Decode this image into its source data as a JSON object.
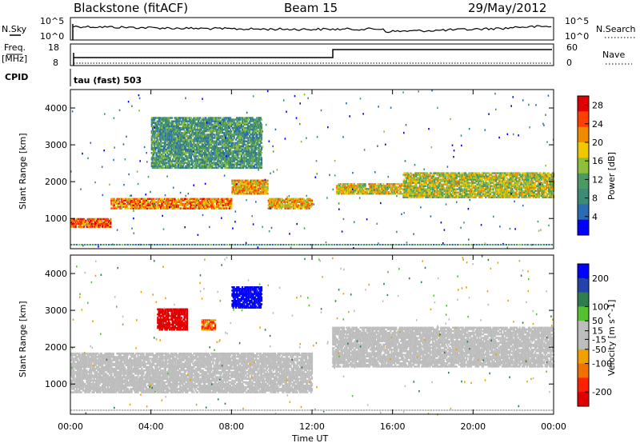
{
  "header": {
    "station": "Blackstone (fitACF)",
    "beam": "Beam 15",
    "date": "29/May/2012"
  },
  "summary_panels": {
    "nsky_label": "N.Sky",
    "nsearch_label": "N.Search",
    "noise_ticks_top": "10^5",
    "noise_ticks_bottom": "10^0",
    "freq_label": "Freq.",
    "freq_unit": "[MHz]",
    "freq_ticks": [
      "18",
      "8"
    ],
    "nave_label": "Nave",
    "nave_ticks": [
      "60",
      "0"
    ],
    "cpid_label": "CPID",
    "cpid_text": "tau (fast) 503"
  },
  "chart_data": [
    {
      "type": "heatmap",
      "name": "Power",
      "ylabel": "Slant Range [km]",
      "xlabel": "",
      "x_ticks": [
        "00:00",
        "04:00",
        "08:00",
        "12:00",
        "16:00",
        "20:00",
        "00:00"
      ],
      "x_range_hours": [
        0,
        24
      ],
      "y_ticks": [
        1000,
        2000,
        3000,
        4000
      ],
      "ylim": [
        180,
        4500
      ],
      "colorbar": {
        "label": "Power [dB]",
        "ticks": [
          4,
          8,
          12,
          16,
          20,
          24,
          28
        ],
        "range": [
          0,
          30
        ],
        "colors": [
          "#0000ff",
          "#2b6cb0",
          "#3d8a77",
          "#4a9a64",
          "#8fbf3a",
          "#f0c800",
          "#f08a00",
          "#ff4000",
          "#e00000"
        ]
      },
      "features": [
        {
          "desc": "strong echo band",
          "start_hour": 0.0,
          "end_hour": 2.0,
          "range_km": [
            800,
            1050
          ],
          "power_db": 24
        },
        {
          "desc": "strong echo band",
          "start_hour": 2.0,
          "end_hour": 8.0,
          "range_km": [
            1300,
            1600
          ],
          "power_db": 22
        },
        {
          "desc": "strong echo band",
          "start_hour": 8.0,
          "end_hour": 9.8,
          "range_km": [
            1700,
            2100
          ],
          "power_db": 20
        },
        {
          "desc": "strong echo band",
          "start_hour": 9.8,
          "end_hour": 12.0,
          "range_km": [
            1300,
            1600
          ],
          "power_db": 20
        },
        {
          "desc": "echo band",
          "start_hour": 13.2,
          "end_hour": 16.5,
          "range_km": [
            1700,
            2000
          ],
          "power_db": 18
        },
        {
          "desc": "echo band",
          "start_hour": 16.5,
          "end_hour": 24.0,
          "range_km": [
            1600,
            2300
          ],
          "power_db": 16
        },
        {
          "desc": "patchy echoes",
          "start_hour": 4.0,
          "end_hour": 9.5,
          "range_km": [
            2400,
            3800
          ],
          "power_db": 10
        }
      ]
    },
    {
      "type": "heatmap",
      "name": "Velocity",
      "ylabel": "Slant Range [km]",
      "xlabel": "Time UT",
      "x_ticks": [
        "00:00",
        "04:00",
        "08:00",
        "12:00",
        "16:00",
        "20:00",
        "00:00"
      ],
      "x_range_hours": [
        0,
        24
      ],
      "y_ticks": [
        1000,
        2000,
        3000,
        4000
      ],
      "ylim": [
        180,
        4500
      ],
      "colorbar": {
        "label": "Velocity [m s^-1]",
        "ticks": [
          200,
          100,
          50,
          15,
          -15,
          -50,
          -100,
          -200
        ],
        "range": [
          -250,
          250
        ],
        "colors": [
          "#0000ff",
          "#2244aa",
          "#2e7d4f",
          "#55c030",
          "#bdbdbd",
          "#bdbdbd",
          "#f0a000",
          "#f07000",
          "#ff2000",
          "#e00000"
        ]
      },
      "features": [
        {
          "desc": "ground scatter (grey)",
          "start_hour": 0.0,
          "end_hour": 12.0,
          "range_km": [
            800,
            1900
          ],
          "velocity_ms": 0
        },
        {
          "desc": "ground scatter (grey)",
          "start_hour": 13.0,
          "end_hour": 24.0,
          "range_km": [
            1500,
            2600
          ],
          "velocity_ms": 0
        },
        {
          "desc": "red receding patch",
          "start_hour": 4.3,
          "end_hour": 5.8,
          "range_km": [
            2500,
            3100
          ],
          "velocity_ms": -200
        },
        {
          "desc": "orange patch",
          "start_hour": 6.5,
          "end_hour": 7.2,
          "range_km": [
            2500,
            2800
          ],
          "velocity_ms": -70
        },
        {
          "desc": "blue approaching patch",
          "start_hour": 8.0,
          "end_hour": 9.5,
          "range_km": [
            3100,
            3700
          ],
          "velocity_ms": 200
        }
      ]
    }
  ],
  "colors": {
    "ground_scatter": "#bdbdbd"
  }
}
